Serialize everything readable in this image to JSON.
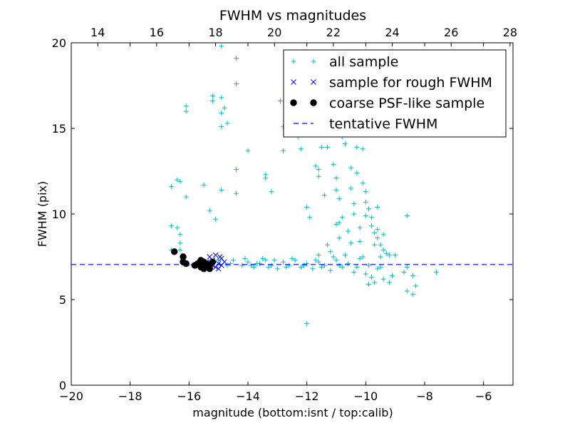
{
  "chart_data": {
    "type": "scatter",
    "title": "FWHM vs magnitudes",
    "xlabel": "magnitude (bottom:isnt / top:calib)",
    "ylabel": "FWHM (pix)",
    "xlim": [
      -20,
      -5
    ],
    "ylim": [
      0,
      20
    ],
    "top_xlim": [
      13.1,
      28.1
    ],
    "x_ticks": [
      -20,
      -18,
      -16,
      -14,
      -12,
      -10,
      -8,
      -6
    ],
    "x_tick_labels": [
      "−20",
      "−18",
      "−16",
      "−14",
      "−12",
      "−10",
      "−8",
      "−6"
    ],
    "y_ticks": [
      0,
      5,
      10,
      15,
      20
    ],
    "y_tick_labels": [
      "0",
      "5",
      "10",
      "15",
      "20"
    ],
    "top_ticks": [
      14,
      16,
      18,
      20,
      22,
      24,
      26,
      28
    ],
    "top_tick_labels": [
      "14",
      "16",
      "18",
      "20",
      "22",
      "24",
      "26",
      "28"
    ],
    "grid": false,
    "legend_position": "top-right",
    "series": [
      {
        "name": "all sample",
        "marker": "plus",
        "color": "#00bfbf",
        "points": [
          [
            -16.6,
            11.6
          ],
          [
            -16.4,
            12.0
          ],
          [
            -16.3,
            11.9
          ],
          [
            -16.1,
            16.3
          ],
          [
            -16.1,
            16.0
          ],
          [
            -16.1,
            11.0
          ],
          [
            -15.5,
            11.7
          ],
          [
            -15.3,
            10.2
          ],
          [
            -15.2,
            16.9
          ],
          [
            -15.2,
            16.6
          ],
          [
            -15.1,
            9.7
          ],
          [
            -14.9,
            19.8
          ],
          [
            -14.9,
            16.8
          ],
          [
            -14.9,
            15.9
          ],
          [
            -14.8,
            16.2
          ],
          [
            -14.9,
            15.1
          ],
          [
            -14.7,
            15.3
          ],
          [
            -14.9,
            11.4
          ],
          [
            -14.4,
            19.1
          ],
          [
            -14.4,
            17.6
          ],
          [
            -14.4,
            12.6
          ],
          [
            -14.4,
            11.2
          ],
          [
            -14.0,
            13.7
          ],
          [
            -13.4,
            12.3
          ],
          [
            -13.4,
            12.1
          ],
          [
            -12.9,
            16.6
          ],
          [
            -12.8,
            13.7
          ],
          [
            -12.8,
            15.1
          ],
          [
            -13.2,
            11.3
          ],
          [
            -12.3,
            14.5
          ],
          [
            -12.2,
            13.8
          ],
          [
            -12.0,
            10.4
          ],
          [
            -11.7,
            12.8
          ],
          [
            -11.6,
            12.6
          ],
          [
            -11.5,
            13.9
          ],
          [
            -11.6,
            12.2
          ],
          [
            -11.9,
            9.8
          ],
          [
            -11.3,
            13.9
          ],
          [
            -11.4,
            11.1
          ],
          [
            -11.1,
            12.9
          ],
          [
            -11.0,
            12.1
          ],
          [
            -11.0,
            11.4
          ],
          [
            -10.9,
            10.9
          ],
          [
            -10.9,
            9.5
          ],
          [
            -10.8,
            14.5
          ],
          [
            -10.7,
            14.1
          ],
          [
            -10.5,
            12.7
          ],
          [
            -10.5,
            11.5
          ],
          [
            -10.4,
            10.6
          ],
          [
            -10.3,
            13.9
          ],
          [
            -10.3,
            12.4
          ],
          [
            -10.2,
            9.2
          ],
          [
            -10.1,
            13.8
          ],
          [
            -10.1,
            11.8
          ],
          [
            -10.0,
            11.3
          ],
          [
            -10.0,
            10.7
          ],
          [
            -9.9,
            10.3
          ],
          [
            -9.8,
            9.8
          ],
          [
            -9.8,
            9.3
          ],
          [
            -9.7,
            8.9
          ],
          [
            -9.6,
            8.6
          ],
          [
            -9.6,
            9.1
          ],
          [
            -9.5,
            8.2
          ],
          [
            -9.5,
            7.5
          ],
          [
            -9.4,
            7.9
          ],
          [
            -9.3,
            7.7
          ],
          [
            -9.2,
            7.6
          ],
          [
            -9.0,
            7.6
          ],
          [
            -8.7,
            6.6
          ],
          [
            -8.6,
            6.9
          ],
          [
            -8.6,
            5.5
          ],
          [
            -8.4,
            5.3
          ],
          [
            -8.4,
            6.4
          ],
          [
            -8.3,
            5.8
          ],
          [
            -7.6,
            6.6
          ],
          [
            -8.6,
            9.9
          ],
          [
            -16.6,
            9.3
          ],
          [
            -16.4,
            9.2
          ],
          [
            -16.3,
            8.8
          ],
          [
            -16.3,
            8.3
          ],
          [
            -16.6,
            7.9
          ],
          [
            -16.3,
            7.9
          ],
          [
            -15.9,
            7.0
          ],
          [
            -15.0,
            7.3
          ],
          [
            -14.7,
            7.0
          ],
          [
            -14.5,
            7.3
          ],
          [
            -14.2,
            7.0
          ],
          [
            -14.0,
            7.2
          ],
          [
            -13.8,
            6.9
          ],
          [
            -13.6,
            7.1
          ],
          [
            -13.4,
            7.3
          ],
          [
            -13.2,
            7.0
          ],
          [
            -13.0,
            6.8
          ],
          [
            -12.8,
            7.2
          ],
          [
            -12.6,
            7.0
          ],
          [
            -12.4,
            7.3
          ],
          [
            -12.2,
            6.9
          ],
          [
            -12.0,
            7.1
          ],
          [
            -11.8,
            6.8
          ],
          [
            -11.6,
            7.2
          ],
          [
            -11.4,
            7.0
          ],
          [
            -11.2,
            6.7
          ],
          [
            -11.0,
            7.3
          ],
          [
            -10.8,
            6.9
          ],
          [
            -10.6,
            7.1
          ],
          [
            -10.4,
            6.6
          ],
          [
            -10.2,
            7.4
          ],
          [
            -10.0,
            6.5
          ],
          [
            -9.8,
            6.3
          ],
          [
            -9.6,
            6.8
          ],
          [
            -9.4,
            6.2
          ],
          [
            -9.2,
            6.0
          ],
          [
            -9.1,
            6.4
          ],
          [
            -9.9,
            5.9
          ],
          [
            -9.7,
            6.0
          ],
          [
            -12.0,
            3.6
          ],
          [
            -13.9,
            7.0
          ],
          [
            -13.3,
            6.9
          ],
          [
            -12.7,
            6.9
          ],
          [
            -12.1,
            7.0
          ],
          [
            -11.5,
            6.9
          ],
          [
            -10.9,
            7.0
          ],
          [
            -10.3,
            6.9
          ],
          [
            -9.9,
            7.0
          ],
          [
            -9.5,
            6.9
          ],
          [
            -14.6,
            7.1
          ],
          [
            -13.7,
            7.1
          ],
          [
            -11.7,
            7.3
          ],
          [
            -11.1,
            7.5
          ],
          [
            -10.7,
            7.6
          ],
          [
            -10.1,
            7.5
          ],
          [
            -10.5,
            8.3
          ],
          [
            -10.9,
            8.6
          ],
          [
            -11.3,
            8.2
          ],
          [
            -10.2,
            8.4
          ],
          [
            -9.7,
            8.2
          ],
          [
            -9.4,
            8.8
          ],
          [
            -10.6,
            9.0
          ],
          [
            -11.0,
            9.4
          ],
          [
            -10.0,
            9.9
          ],
          [
            -9.6,
            10.4
          ],
          [
            -10.4,
            10.0
          ],
          [
            -10.8,
            9.8
          ],
          [
            -11.2,
            7.8
          ],
          [
            -11.6,
            7.6
          ],
          [
            -12.5,
            7.4
          ],
          [
            -13.1,
            7.3
          ],
          [
            -13.5,
            7.4
          ],
          [
            -14.1,
            7.4
          ]
        ]
      },
      {
        "name": "sample for rough FWHM",
        "marker": "x",
        "color": "#0000ff",
        "points": [
          [
            -15.3,
            7.5
          ],
          [
            -15.2,
            7.3
          ],
          [
            -15.1,
            7.6
          ],
          [
            -15.0,
            7.1
          ],
          [
            -14.9,
            7.4
          ],
          [
            -14.9,
            7.0
          ],
          [
            -15.1,
            6.9
          ],
          [
            -15.0,
            6.8
          ],
          [
            -14.8,
            7.2
          ],
          [
            -15.2,
            7.0
          ],
          [
            -15.4,
            7.2
          ],
          [
            -14.95,
            7.5
          ]
        ]
      },
      {
        "name": "coarse PSF-like sample",
        "marker": "circle",
        "color": "#000000",
        "points": [
          [
            -16.5,
            7.8
          ],
          [
            -16.2,
            7.5
          ],
          [
            -16.2,
            7.2
          ],
          [
            -16.1,
            7.1
          ],
          [
            -15.8,
            7.0
          ],
          [
            -15.7,
            7.1
          ],
          [
            -15.6,
            6.9
          ],
          [
            -15.5,
            7.2
          ],
          [
            -15.4,
            7.1
          ],
          [
            -15.3,
            7.0
          ],
          [
            -15.6,
            7.3
          ],
          [
            -15.3,
            6.8
          ],
          [
            -15.2,
            7.2
          ],
          [
            -15.5,
            6.8
          ]
        ]
      },
      {
        "name": "tentative FWHM",
        "marker": "dashed-line",
        "color": "#0000ff",
        "value": 7.05
      }
    ]
  }
}
